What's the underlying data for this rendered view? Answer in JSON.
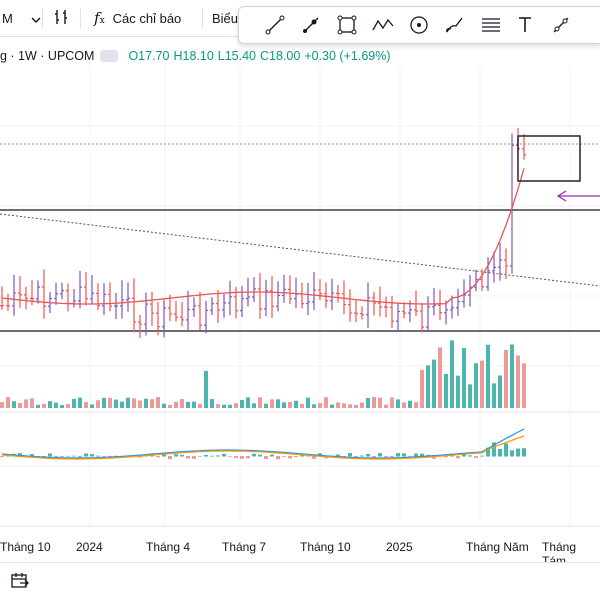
{
  "toolbar": {
    "interval_label": "M",
    "indicators_label": "Các chỉ báo",
    "chart_type_label": "Biểu"
  },
  "legend": {
    "symbol": "g · 1W · UPCOM",
    "open": "O17.70",
    "high": "H18.10",
    "low": "L15.40",
    "close": "C18.00",
    "change": "+0.30 (+1.69%)"
  },
  "icons": {
    "interval_dropdown": "chevron-down-icon",
    "compare": "compare-bars-icon",
    "indicators": "fx-icon",
    "draw_tools": [
      "line-icon",
      "ray-icon",
      "rectangle-icon",
      "path-icon",
      "circle-icon",
      "brush-icon",
      "fib-lines-icon",
      "text-icon",
      "line-alt-icon"
    ],
    "footer": "date-range-icon"
  },
  "chart_data": {
    "type": "bar",
    "series_type": "ohlc",
    "x_axis_labels": [
      "Tháng 10",
      "2024",
      "Tháng 4",
      "Tháng 7",
      "Tháng 10",
      "2025",
      "Tháng Năm",
      "Tháng Tám"
    ],
    "last_bar": {
      "open": 17.7,
      "high": 18.1,
      "low": 15.4,
      "close": 18.0,
      "change": 0.3,
      "change_pct": 1.69
    },
    "colors": {
      "up": "#7e57c2",
      "down": "#ef5350",
      "ma": "#ef5350",
      "vol_up": "#4db6ac",
      "vol_down": "#ef9a9a",
      "macd": "#2196f3",
      "signal": "#ff9800",
      "trendline": "#555555",
      "level": "#131722"
    },
    "annotations": [
      "descending-trendline",
      "support-resistance-lines",
      "consolidation-rectangle",
      "arrow"
    ],
    "panes": [
      "price",
      "volume",
      "macd"
    ],
    "grid": true
  }
}
